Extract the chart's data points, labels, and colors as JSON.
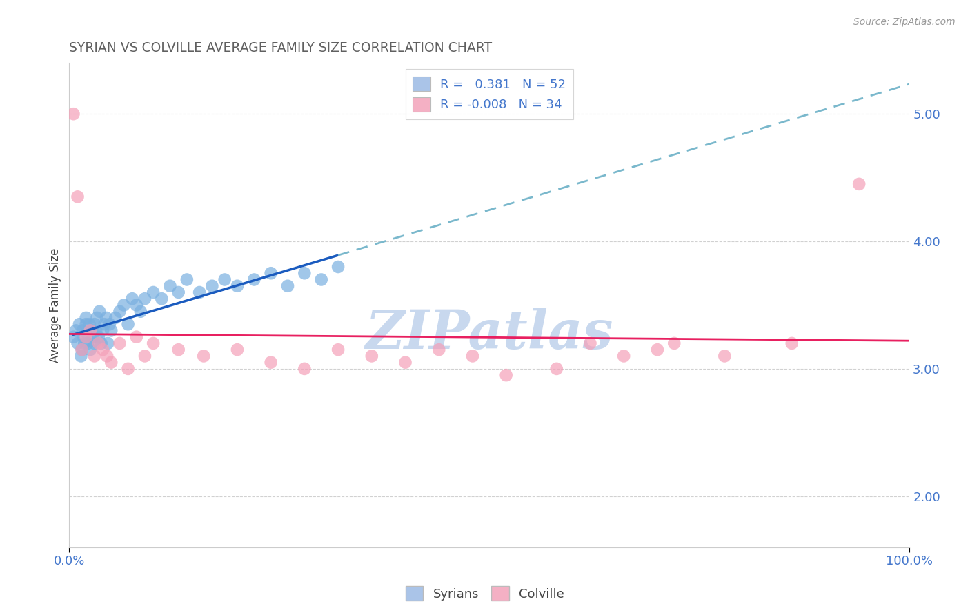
{
  "title": "SYRIAN VS COLVILLE AVERAGE FAMILY SIZE CORRELATION CHART",
  "source": "Source: ZipAtlas.com",
  "ylabel": "Average Family Size",
  "xlim": [
    0,
    1.0
  ],
  "ylim": [
    1.6,
    5.4
  ],
  "xtick_labels": [
    "0.0%",
    "100.0%"
  ],
  "ytick_values": [
    2.0,
    3.0,
    4.0,
    5.0
  ],
  "legend_entries": [
    {
      "label": "R =   0.381   N = 52",
      "color": "#aac4e8"
    },
    {
      "label": "R = -0.008   N = 34",
      "color": "#f4b0c4"
    }
  ],
  "syrians_x": [
    0.005,
    0.008,
    0.01,
    0.012,
    0.014,
    0.015,
    0.016,
    0.017,
    0.018,
    0.02,
    0.02,
    0.022,
    0.024,
    0.025,
    0.026,
    0.028,
    0.03,
    0.03,
    0.032,
    0.033,
    0.035,
    0.036,
    0.038,
    0.04,
    0.042,
    0.044,
    0.046,
    0.048,
    0.05,
    0.055,
    0.06,
    0.065,
    0.07,
    0.075,
    0.08,
    0.085,
    0.09,
    0.1,
    0.11,
    0.12,
    0.13,
    0.14,
    0.155,
    0.17,
    0.185,
    0.2,
    0.22,
    0.24,
    0.26,
    0.28,
    0.3,
    0.32
  ],
  "syrians_y": [
    3.25,
    3.3,
    3.2,
    3.35,
    3.1,
    3.15,
    3.3,
    3.25,
    3.2,
    3.35,
    3.4,
    3.2,
    3.35,
    3.15,
    3.3,
    3.25,
    3.35,
    3.2,
    3.3,
    3.4,
    3.25,
    3.45,
    3.2,
    3.3,
    3.35,
    3.4,
    3.2,
    3.35,
    3.3,
    3.4,
    3.45,
    3.5,
    3.35,
    3.55,
    3.5,
    3.45,
    3.55,
    3.6,
    3.55,
    3.65,
    3.6,
    3.7,
    3.6,
    3.65,
    3.7,
    3.65,
    3.7,
    3.75,
    3.65,
    3.75,
    3.7,
    3.8
  ],
  "colville_x": [
    0.005,
    0.01,
    0.015,
    0.02,
    0.025,
    0.03,
    0.035,
    0.04,
    0.045,
    0.05,
    0.06,
    0.07,
    0.08,
    0.09,
    0.1,
    0.13,
    0.16,
    0.2,
    0.24,
    0.28,
    0.32,
    0.36,
    0.4,
    0.44,
    0.48,
    0.52,
    0.58,
    0.62,
    0.66,
    0.7,
    0.72,
    0.78,
    0.86,
    0.94
  ],
  "colville_y": [
    5.0,
    4.35,
    3.15,
    3.25,
    3.3,
    3.1,
    3.2,
    3.15,
    3.1,
    3.05,
    3.2,
    3.0,
    3.25,
    3.1,
    3.2,
    3.15,
    3.1,
    3.15,
    3.05,
    3.0,
    3.15,
    3.1,
    3.05,
    3.15,
    3.1,
    2.95,
    3.0,
    3.2,
    3.1,
    3.15,
    3.2,
    3.1,
    3.2,
    4.45
  ],
  "syrian_color": "#7ab0e0",
  "colville_color": "#f4a0b8",
  "syrian_line_color": "#1a5bbf",
  "syrian_dash_color": "#7ab8cc",
  "colville_line_color": "#e82060",
  "background_color": "#ffffff",
  "grid_color": "#cccccc",
  "title_color": "#606060",
  "axis_label_color": "#444444",
  "tick_color": "#4477cc",
  "watermark_color": "#c8d8ee",
  "watermark_text": "ZIPatlas",
  "bottom_legend": [
    {
      "label": "Syrians",
      "color": "#aac4e8"
    },
    {
      "label": "Colville",
      "color": "#f4b0c4"
    }
  ]
}
